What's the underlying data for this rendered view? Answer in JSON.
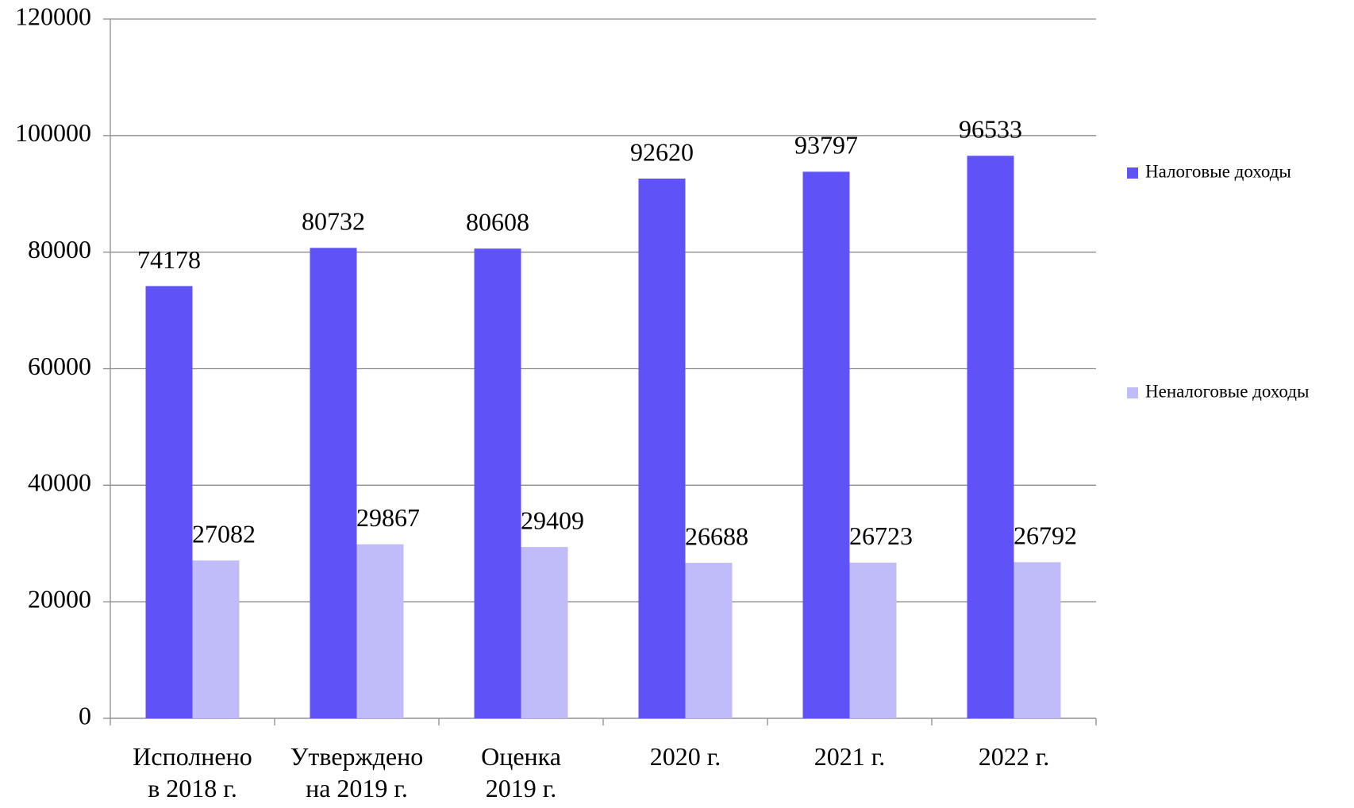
{
  "chart_data": {
    "type": "bar",
    "categories": [
      "Исполнено\nв 2018 г.",
      "Утверждено\nна 2019 г.",
      "Оценка\n2019 г.",
      "2020 г.",
      "2021 г.",
      "2022 г."
    ],
    "series": [
      {
        "name": "Налоговые доходы",
        "color": "#5f52f7",
        "values": [
          74178,
          80732,
          80608,
          92620,
          93797,
          96533
        ]
      },
      {
        "name": "Неналоговые доходы",
        "color": "#c0bcfa",
        "values": [
          27082,
          29867,
          29409,
          26688,
          26723,
          26792
        ]
      }
    ],
    "ylim": [
      0,
      120000
    ],
    "yticks": [
      0,
      20000,
      40000,
      60000,
      80000,
      100000,
      120000
    ],
    "grid": true,
    "legend": "right"
  }
}
